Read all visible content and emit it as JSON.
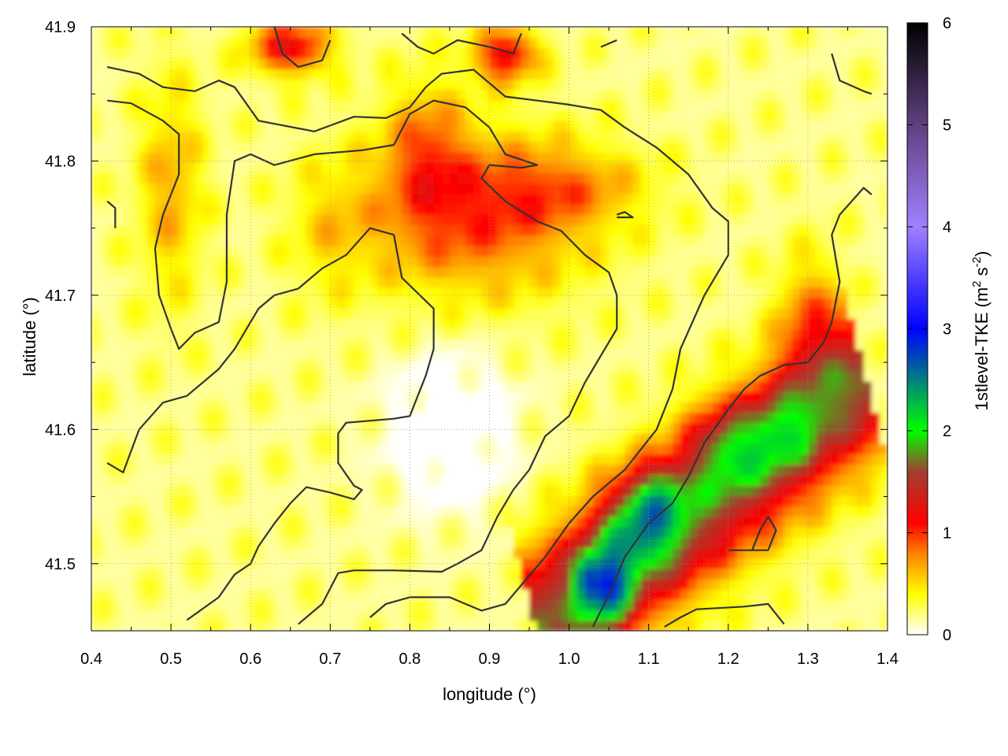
{
  "chart_data": {
    "type": "heatmap",
    "xlabel": "longitude (°)",
    "ylabel": "latitude (°)",
    "colorbar_label": "1stlevel-TKE (m² s⁻²)",
    "colorbar_label_parts": {
      "text": "1stlevel-TKE (m",
      "sup1": "2",
      "mid": " s",
      "sup2": "-2",
      "end": ")"
    },
    "xlim": [
      0.4,
      1.4
    ],
    "ylim": [
      41.45,
      41.9
    ],
    "x_ticks": [
      0.4,
      0.5,
      0.6,
      0.7,
      0.8,
      0.9,
      1.0,
      1.1,
      1.2,
      1.3,
      1.4
    ],
    "x_tick_labels": [
      "0.4",
      "0.5",
      "0.6",
      "0.7",
      "0.8",
      "0.9",
      "1.0",
      "1.1",
      "1.2",
      "1.3",
      "1.4"
    ],
    "y_ticks": [
      41.5,
      41.6,
      41.7,
      41.8,
      41.9
    ],
    "y_tick_labels": [
      "41.5",
      "41.6",
      "41.7",
      "41.8",
      "41.9"
    ],
    "colorbar_range": [
      0,
      6
    ],
    "colorbar_ticks": [
      0,
      1,
      2,
      3,
      4,
      5,
      6
    ],
    "colorbar_tick_labels": [
      "0",
      "1",
      "2",
      "3",
      "4",
      "5",
      "6"
    ],
    "colormap": [
      {
        "value": 0.0,
        "color": "#ffffff"
      },
      {
        "value": 0.4,
        "color": "#ffff00"
      },
      {
        "value": 0.8,
        "color": "#ff8000"
      },
      {
        "value": 1.1,
        "color": "#ff0000"
      },
      {
        "value": 1.6,
        "color": "#a04030"
      },
      {
        "value": 2.0,
        "color": "#00ff00"
      },
      {
        "value": 3.0,
        "color": "#0000ff"
      },
      {
        "value": 4.0,
        "color": "#a080ff"
      },
      {
        "value": 5.0,
        "color": "#604080"
      },
      {
        "value": 6.0,
        "color": "#000000"
      }
    ],
    "grid": true,
    "field_features": [
      {
        "region": "southeast band",
        "x": [
          1.0,
          1.35
        ],
        "y": [
          41.45,
          41.72
        ],
        "approx_value": 1.6
      },
      {
        "region": "green core",
        "lon": 1.09,
        "lat": 41.52,
        "approx_value": 2.2
      },
      {
        "region": "blue core",
        "lon": 1.05,
        "lat": 41.48,
        "approx_value": 2.8
      },
      {
        "region": "central orange",
        "lon": 0.9,
        "lat": 41.76,
        "approx_value": 0.9
      },
      {
        "region": "north red",
        "lon": 0.65,
        "lat": 41.89,
        "approx_value": 1.1
      }
    ],
    "contour_lines": [
      [
        [
          0.42,
          41.87
        ],
        [
          0.46,
          41.865
        ],
        [
          0.49,
          41.855
        ],
        [
          0.53,
          41.852
        ],
        [
          0.56,
          41.86
        ],
        [
          0.58,
          41.855
        ],
        [
          0.61,
          41.83
        ],
        [
          0.68,
          41.822
        ],
        [
          0.73,
          41.833
        ],
        [
          0.77,
          41.832
        ],
        [
          0.8,
          41.84
        ],
        [
          0.82,
          41.855
        ],
        [
          0.84,
          41.865
        ],
        [
          0.88,
          41.868
        ],
        [
          0.92,
          41.848
        ],
        [
          0.96,
          41.845
        ],
        [
          1.0,
          41.842
        ],
        [
          1.04,
          41.838
        ],
        [
          1.07,
          41.825
        ],
        [
          1.11,
          41.81
        ],
        [
          1.15,
          41.79
        ],
        [
          1.18,
          41.765
        ],
        [
          1.2,
          41.755
        ],
        [
          1.2,
          41.73
        ],
        [
          1.17,
          41.7
        ],
        [
          1.14,
          41.66
        ],
        [
          1.13,
          41.63
        ],
        [
          1.11,
          41.6
        ],
        [
          1.07,
          41.57
        ],
        [
          1.03,
          41.55
        ],
        [
          1.0,
          41.53
        ],
        [
          0.97,
          41.505
        ],
        [
          0.92,
          41.47
        ],
        [
          0.89,
          41.465
        ],
        [
          0.85,
          41.475
        ],
        [
          0.8,
          41.475
        ],
        [
          0.77,
          41.47
        ],
        [
          0.75,
          41.46
        ]
      ],
      [
        [
          0.42,
          41.845
        ],
        [
          0.45,
          41.843
        ],
        [
          0.49,
          41.83
        ],
        [
          0.51,
          41.82
        ],
        [
          0.51,
          41.79
        ],
        [
          0.49,
          41.76
        ],
        [
          0.48,
          41.735
        ],
        [
          0.485,
          41.7
        ],
        [
          0.5,
          41.675
        ],
        [
          0.51,
          41.66
        ],
        [
          0.53,
          41.672
        ],
        [
          0.56,
          41.68
        ],
        [
          0.57,
          41.71
        ],
        [
          0.57,
          41.76
        ],
        [
          0.58,
          41.8
        ],
        [
          0.6,
          41.805
        ],
        [
          0.63,
          41.797
        ],
        [
          0.68,
          41.805
        ],
        [
          0.74,
          41.808
        ],
        [
          0.78,
          41.812
        ],
        [
          0.8,
          41.835
        ],
        [
          0.83,
          41.845
        ],
        [
          0.87,
          41.84
        ],
        [
          0.9,
          41.825
        ],
        [
          0.92,
          41.805
        ],
        [
          0.96,
          41.797
        ],
        [
          0.94,
          41.795
        ],
        [
          0.9,
          41.797
        ],
        [
          0.89,
          41.787
        ],
        [
          0.92,
          41.77
        ],
        [
          0.96,
          41.755
        ],
        [
          0.99,
          41.748
        ],
        [
          1.02,
          41.73
        ],
        [
          1.05,
          41.717
        ],
        [
          1.06,
          41.7
        ],
        [
          1.06,
          41.675
        ],
        [
          1.04,
          41.655
        ],
        [
          1.02,
          41.635
        ],
        [
          1.0,
          41.61
        ],
        [
          0.97,
          41.595
        ],
        [
          0.95,
          41.57
        ],
        [
          0.93,
          41.555
        ],
        [
          0.91,
          41.535
        ],
        [
          0.89,
          41.51
        ],
        [
          0.86,
          41.5
        ],
        [
          0.84,
          41.494
        ],
        [
          0.78,
          41.495
        ],
        [
          0.73,
          41.495
        ],
        [
          0.71,
          41.493
        ],
        [
          0.69,
          41.47
        ],
        [
          0.66,
          41.455
        ]
      ],
      [
        [
          0.42,
          41.575
        ],
        [
          0.44,
          41.568
        ],
        [
          0.46,
          41.6
        ],
        [
          0.49,
          41.62
        ],
        [
          0.52,
          41.625
        ],
        [
          0.56,
          41.645
        ],
        [
          0.58,
          41.66
        ],
        [
          0.61,
          41.69
        ],
        [
          0.63,
          41.7
        ],
        [
          0.66,
          41.705
        ],
        [
          0.69,
          41.72
        ],
        [
          0.72,
          41.73
        ],
        [
          0.75,
          41.75
        ],
        [
          0.78,
          41.745
        ],
        [
          0.79,
          41.713
        ],
        [
          0.83,
          41.69
        ],
        [
          0.83,
          41.66
        ],
        [
          0.82,
          41.64
        ],
        [
          0.8,
          41.61
        ],
        [
          0.78,
          41.608
        ],
        [
          0.72,
          41.605
        ],
        [
          0.71,
          41.597
        ],
        [
          0.71,
          41.575
        ],
        [
          0.73,
          41.558
        ],
        [
          0.74,
          41.555
        ],
        [
          0.73,
          41.548
        ],
        [
          0.7,
          41.553
        ],
        [
          0.67,
          41.557
        ],
        [
          0.65,
          41.545
        ],
        [
          0.63,
          41.53
        ],
        [
          0.61,
          41.513
        ],
        [
          0.6,
          41.5
        ],
        [
          0.58,
          41.492
        ],
        [
          0.56,
          41.475
        ],
        [
          0.52,
          41.458
        ]
      ],
      [
        [
          1.03,
          41.453
        ],
        [
          1.05,
          41.477
        ],
        [
          1.07,
          41.505
        ],
        [
          1.1,
          41.53
        ],
        [
          1.13,
          41.545
        ],
        [
          1.15,
          41.565
        ],
        [
          1.17,
          41.59
        ],
        [
          1.2,
          41.615
        ],
        [
          1.22,
          41.63
        ],
        [
          1.24,
          41.64
        ],
        [
          1.27,
          41.648
        ],
        [
          1.3,
          41.65
        ],
        [
          1.32,
          41.665
        ],
        [
          1.33,
          41.68
        ],
        [
          1.34,
          41.71
        ],
        [
          1.33,
          41.745
        ],
        [
          1.34,
          41.76
        ],
        [
          1.37,
          41.78
        ],
        [
          1.38,
          41.775
        ]
      ],
      [
        [
          1.33,
          41.88
        ],
        [
          1.34,
          41.86
        ],
        [
          1.37,
          41.852
        ],
        [
          1.38,
          41.85
        ]
      ],
      [
        [
          1.12,
          41.453
        ],
        [
          1.14,
          41.46
        ],
        [
          1.16,
          41.466
        ],
        [
          1.22,
          41.468
        ],
        [
          1.25,
          41.47
        ],
        [
          1.27,
          41.455
        ]
      ],
      [
        [
          1.2,
          41.51
        ],
        [
          1.22,
          41.51
        ],
        [
          1.25,
          41.51
        ],
        [
          1.26,
          41.525
        ],
        [
          1.25,
          41.535
        ],
        [
          1.24,
          41.525
        ],
        [
          1.23,
          41.51
        ]
      ],
      [
        [
          1.06,
          41.76
        ],
        [
          1.07,
          41.762
        ],
        [
          1.08,
          41.758
        ],
        [
          1.06,
          41.758
        ]
      ],
      [
        [
          0.63,
          41.9
        ],
        [
          0.64,
          41.88
        ],
        [
          0.66,
          41.87
        ],
        [
          0.69,
          41.875
        ],
        [
          0.7,
          41.89
        ]
      ],
      [
        [
          0.79,
          41.895
        ],
        [
          0.81,
          41.885
        ],
        [
          0.83,
          41.88
        ],
        [
          0.86,
          41.89
        ],
        [
          0.9,
          41.885
        ],
        [
          0.93,
          41.88
        ],
        [
          0.94,
          41.895
        ]
      ],
      [
        [
          1.04,
          41.885
        ],
        [
          1.06,
          41.89
        ]
      ],
      [
        [
          0.42,
          41.77
        ],
        [
          0.43,
          41.765
        ],
        [
          0.43,
          41.75
        ]
      ]
    ],
    "contour_color": "#333333"
  }
}
